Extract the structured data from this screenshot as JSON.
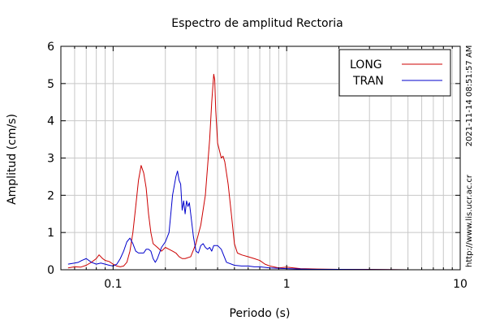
{
  "chart_data": {
    "type": "line",
    "title": "Espectro de amplitud Rectoria",
    "xlabel": "Periodo (s)",
    "ylabel": "Amplitud (cm/s)",
    "xscale": "log",
    "xlim": [
      0.05,
      10
    ],
    "ylim": [
      0,
      6
    ],
    "x_ticks": [
      0.1,
      1,
      10
    ],
    "x_tick_labels": [
      "0.1",
      "1",
      "10"
    ],
    "y_ticks": [
      0,
      1,
      2,
      3,
      4,
      5,
      6
    ],
    "y_tick_labels": [
      "0",
      "1",
      "2",
      "3",
      "4",
      "5",
      "6"
    ],
    "grid": true,
    "legend_position": "top-right",
    "series": [
      {
        "name": "LONG",
        "color": "#cc0000",
        "points": [
          [
            0.055,
            0.05
          ],
          [
            0.06,
            0.08
          ],
          [
            0.065,
            0.07
          ],
          [
            0.07,
            0.12
          ],
          [
            0.075,
            0.2
          ],
          [
            0.08,
            0.3
          ],
          [
            0.083,
            0.4
          ],
          [
            0.087,
            0.3
          ],
          [
            0.09,
            0.25
          ],
          [
            0.095,
            0.22
          ],
          [
            0.1,
            0.15
          ],
          [
            0.105,
            0.1
          ],
          [
            0.11,
            0.08
          ],
          [
            0.115,
            0.1
          ],
          [
            0.12,
            0.2
          ],
          [
            0.125,
            0.5
          ],
          [
            0.13,
            1.0
          ],
          [
            0.135,
            1.7
          ],
          [
            0.14,
            2.4
          ],
          [
            0.145,
            2.8
          ],
          [
            0.15,
            2.6
          ],
          [
            0.155,
            2.2
          ],
          [
            0.16,
            1.5
          ],
          [
            0.165,
            1.0
          ],
          [
            0.17,
            0.7
          ],
          [
            0.18,
            0.6
          ],
          [
            0.19,
            0.5
          ],
          [
            0.2,
            0.6
          ],
          [
            0.21,
            0.55
          ],
          [
            0.22,
            0.5
          ],
          [
            0.23,
            0.45
          ],
          [
            0.24,
            0.35
          ],
          [
            0.25,
            0.3
          ],
          [
            0.26,
            0.3
          ],
          [
            0.28,
            0.35
          ],
          [
            0.3,
            0.7
          ],
          [
            0.32,
            1.2
          ],
          [
            0.34,
            2.0
          ],
          [
            0.36,
            3.5
          ],
          [
            0.37,
            4.5
          ],
          [
            0.38,
            5.25
          ],
          [
            0.385,
            5.1
          ],
          [
            0.39,
            4.3
          ],
          [
            0.4,
            3.4
          ],
          [
            0.41,
            3.2
          ],
          [
            0.42,
            3.0
          ],
          [
            0.43,
            3.05
          ],
          [
            0.44,
            2.9
          ],
          [
            0.46,
            2.3
          ],
          [
            0.48,
            1.5
          ],
          [
            0.5,
            0.7
          ],
          [
            0.52,
            0.45
          ],
          [
            0.55,
            0.4
          ],
          [
            0.6,
            0.35
          ],
          [
            0.65,
            0.3
          ],
          [
            0.7,
            0.25
          ],
          [
            0.75,
            0.15
          ],
          [
            0.8,
            0.1
          ],
          [
            0.9,
            0.05
          ],
          [
            1.0,
            0.07
          ],
          [
            1.1,
            0.05
          ],
          [
            1.2,
            0.03
          ],
          [
            1.5,
            0.02
          ],
          [
            2.0,
            0.01
          ],
          [
            3.0,
            0.01
          ],
          [
            5.0,
            0.0
          ],
          [
            10.0,
            0.0
          ]
        ]
      },
      {
        "name": "TRAN",
        "color": "#0000cc",
        "points": [
          [
            0.055,
            0.15
          ],
          [
            0.06,
            0.18
          ],
          [
            0.063,
            0.2
          ],
          [
            0.066,
            0.25
          ],
          [
            0.07,
            0.3
          ],
          [
            0.075,
            0.2
          ],
          [
            0.08,
            0.15
          ],
          [
            0.085,
            0.18
          ],
          [
            0.09,
            0.15
          ],
          [
            0.095,
            0.12
          ],
          [
            0.1,
            0.1
          ],
          [
            0.105,
            0.15
          ],
          [
            0.11,
            0.3
          ],
          [
            0.115,
            0.5
          ],
          [
            0.12,
            0.75
          ],
          [
            0.125,
            0.85
          ],
          [
            0.13,
            0.7
          ],
          [
            0.135,
            0.5
          ],
          [
            0.14,
            0.45
          ],
          [
            0.15,
            0.45
          ],
          [
            0.155,
            0.55
          ],
          [
            0.16,
            0.55
          ],
          [
            0.165,
            0.5
          ],
          [
            0.17,
            0.3
          ],
          [
            0.175,
            0.2
          ],
          [
            0.18,
            0.3
          ],
          [
            0.19,
            0.6
          ],
          [
            0.2,
            0.75
          ],
          [
            0.21,
            1.0
          ],
          [
            0.215,
            1.5
          ],
          [
            0.22,
            2.0
          ],
          [
            0.23,
            2.5
          ],
          [
            0.235,
            2.65
          ],
          [
            0.24,
            2.4
          ],
          [
            0.245,
            2.3
          ],
          [
            0.25,
            1.6
          ],
          [
            0.255,
            1.85
          ],
          [
            0.26,
            1.5
          ],
          [
            0.265,
            1.85
          ],
          [
            0.27,
            1.7
          ],
          [
            0.275,
            1.8
          ],
          [
            0.28,
            1.5
          ],
          [
            0.29,
            0.9
          ],
          [
            0.3,
            0.5
          ],
          [
            0.31,
            0.45
          ],
          [
            0.32,
            0.65
          ],
          [
            0.33,
            0.7
          ],
          [
            0.34,
            0.6
          ],
          [
            0.35,
            0.55
          ],
          [
            0.36,
            0.6
          ],
          [
            0.37,
            0.5
          ],
          [
            0.38,
            0.65
          ],
          [
            0.4,
            0.65
          ],
          [
            0.42,
            0.55
          ],
          [
            0.45,
            0.2
          ],
          [
            0.5,
            0.12
          ],
          [
            0.55,
            0.1
          ],
          [
            0.6,
            0.1
          ],
          [
            0.65,
            0.08
          ],
          [
            0.7,
            0.08
          ],
          [
            0.8,
            0.05
          ],
          [
            1.0,
            0.03
          ],
          [
            1.2,
            0.02
          ],
          [
            1.5,
            0.01
          ],
          [
            2.0,
            0.01
          ],
          [
            5.0,
            0.0
          ],
          [
            10.0,
            0.0
          ]
        ]
      }
    ]
  },
  "side_text": {
    "timestamp": "2021-11-14 08:51:57 AM",
    "url": "http://www.lis.ucr.ac.cr"
  }
}
